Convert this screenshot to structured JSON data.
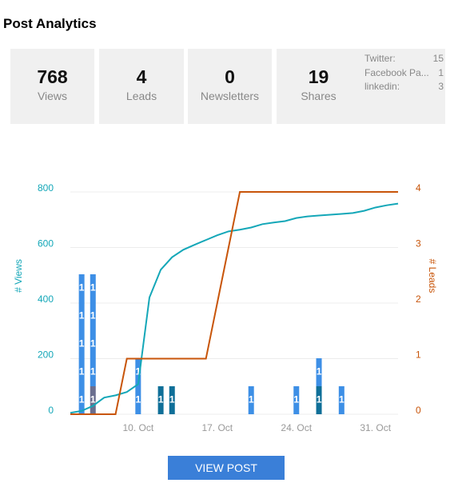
{
  "header": {
    "title": "Post Analytics"
  },
  "stats": [
    {
      "value": 768,
      "label": "Views"
    },
    {
      "value": 4,
      "label": "Leads"
    },
    {
      "value": 0,
      "label": "Newsletters"
    },
    {
      "value": 19,
      "label": "Shares"
    }
  ],
  "share_breakdown": [
    {
      "label": "Twitter:",
      "value": 15
    },
    {
      "label": "Facebook Pa...",
      "value": 1
    },
    {
      "label": "linkedin:",
      "value": 3
    }
  ],
  "chart_data": {
    "type": "combo",
    "y_label": "# Views",
    "y2_label": "# Leads",
    "categories": [
      null,
      null,
      null,
      null,
      null,
      null,
      "10. Oct",
      null,
      null,
      null,
      null,
      null,
      null,
      "17. Oct",
      null,
      null,
      null,
      null,
      null,
      null,
      "24. Oct",
      null,
      null,
      null,
      null,
      null,
      null,
      "31. Oct",
      null,
      null
    ],
    "ylim": [
      0,
      800
    ],
    "yticks": [
      0,
      200,
      400,
      600,
      800
    ],
    "y2lim": [
      0,
      4
    ],
    "y2ticks": [
      0,
      1,
      2,
      3,
      4
    ],
    "grid": true,
    "series": [
      {
        "type": "bar",
        "color": "#6b6f8f",
        "values": [
          null,
          null,
          1,
          null,
          null,
          null,
          null,
          null,
          null,
          null,
          null,
          null,
          null,
          null,
          null,
          null,
          null,
          null,
          null,
          null,
          null,
          null,
          null,
          null,
          null,
          null,
          null,
          null,
          null,
          null
        ]
      },
      {
        "type": "bar",
        "color": "#0f6f98",
        "values": [
          null,
          null,
          null,
          null,
          null,
          null,
          null,
          null,
          1,
          1,
          null,
          null,
          null,
          null,
          null,
          null,
          null,
          null,
          null,
          null,
          null,
          null,
          1,
          null,
          null,
          null,
          null,
          null,
          null,
          null
        ]
      },
      {
        "type": "bar",
        "color": "#3d8fe6",
        "values": [
          null,
          1,
          1,
          null,
          null,
          null,
          1,
          null,
          null,
          null,
          null,
          null,
          null,
          null,
          null,
          null,
          1,
          null,
          null,
          null,
          1,
          null,
          1,
          null,
          1,
          null,
          null,
          null,
          null,
          null
        ]
      },
      {
        "type": "bar",
        "color": "#3d8fe6",
        "values": [
          null,
          1,
          1,
          null,
          null,
          null,
          1,
          null,
          null,
          null,
          null,
          null,
          null,
          null,
          null,
          null,
          null,
          null,
          null,
          null,
          null,
          null,
          null,
          null,
          null,
          null,
          null,
          null,
          null,
          null
        ]
      },
      {
        "type": "bar",
        "color": "#3d8fe6",
        "values": [
          null,
          1,
          1,
          null,
          null,
          null,
          null,
          null,
          null,
          null,
          null,
          null,
          null,
          null,
          null,
          null,
          null,
          null,
          null,
          null,
          null,
          null,
          null,
          null,
          null,
          null,
          null,
          null,
          null,
          null
        ]
      },
      {
        "type": "bar",
        "color": "#3d8fe6",
        "values": [
          null,
          1,
          1,
          null,
          null,
          null,
          null,
          null,
          null,
          null,
          null,
          null,
          null,
          null,
          null,
          null,
          null,
          null,
          null,
          null,
          null,
          null,
          null,
          null,
          null,
          null,
          null,
          null,
          null,
          null
        ]
      },
      {
        "type": "bar",
        "color": "#3d8fe6",
        "values": [
          null,
          1,
          null,
          null,
          null,
          null,
          null,
          null,
          null,
          null,
          null,
          null,
          null,
          null,
          null,
          null,
          null,
          null,
          null,
          null,
          null,
          null,
          null,
          null,
          null,
          null,
          null,
          null,
          null,
          null
        ]
      },
      {
        "type": "line",
        "color": "#14a7b8",
        "values": [
          5,
          12,
          30,
          60,
          68,
          80,
          108,
          420,
          520,
          565,
          592,
          610,
          627,
          644,
          658,
          664,
          672,
          684,
          690,
          695,
          706,
          712,
          715,
          718,
          721,
          724,
          732,
          744,
          752,
          758
        ]
      },
      {
        "type": "line",
        "axis": "y2",
        "color": "#c8550a",
        "values": [
          0,
          0,
          0,
          0,
          0,
          1,
          1,
          1,
          1,
          1,
          1,
          1,
          1,
          2,
          3,
          4,
          4,
          4,
          4,
          4,
          4,
          4,
          4,
          4,
          4,
          4,
          4,
          4,
          4,
          4
        ]
      }
    ]
  },
  "button": {
    "label": "VIEW POST"
  }
}
